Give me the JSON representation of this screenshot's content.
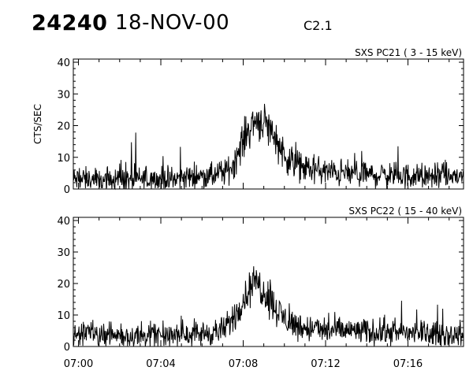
{
  "header": {
    "event_number": "24240",
    "date": "18-NOV-00",
    "flare_class": "C2.1"
  },
  "chart_data": [
    {
      "type": "line",
      "title": "SXS PC21  (  3 - 15 keV)",
      "ylabel": "CTS/SEC",
      "xlabel": "",
      "x_ticks": [
        "07:00",
        "07:04",
        "07:08",
        "07:12",
        "07:16"
      ],
      "x_tick_minutes": [
        0,
        4,
        8,
        12,
        16
      ],
      "xlim_minutes": [
        -0.25,
        18.7
      ],
      "ylim": [
        0,
        41
      ],
      "y_ticks": [
        0,
        10,
        20,
        30,
        40
      ],
      "grid": false,
      "series": [
        {
          "x_minutes": [
            -0.25,
            0.5,
            1.0,
            1.5,
            2.0,
            2.5,
            3.0,
            3.5,
            4.0,
            4.5,
            5.0,
            5.5,
            6.0,
            6.5,
            7.0,
            7.3,
            7.6,
            7.9,
            8.2,
            8.5,
            8.7,
            9.0,
            9.3,
            9.6,
            9.9,
            10.2,
            10.5,
            11.0,
            11.5,
            12.0,
            12.5,
            13.0,
            13.5,
            14.0,
            15.0,
            16.0,
            17.0,
            18.0,
            18.7
          ],
          "values": [
            3,
            3,
            3,
            3.5,
            3,
            3,
            3,
            3,
            3,
            3,
            3.5,
            4,
            4,
            4,
            5,
            6,
            9,
            14,
            18,
            21,
            22,
            21,
            19,
            16,
            12,
            9,
            8,
            6.5,
            6,
            5.5,
            5,
            5,
            4.5,
            4.5,
            4.5,
            4,
            4,
            4,
            4
          ]
        }
      ]
    },
    {
      "type": "line",
      "title": "SXS PC22  ( 15 - 40 keV)",
      "ylabel": "",
      "xlabel": "",
      "x_ticks": [
        "07:00",
        "07:04",
        "07:08",
        "07:12",
        "07:16"
      ],
      "x_tick_minutes": [
        0,
        4,
        8,
        12,
        16
      ],
      "xlim_minutes": [
        -0.25,
        18.7
      ],
      "ylim": [
        0,
        41
      ],
      "y_ticks": [
        0,
        10,
        20,
        30,
        40
      ],
      "grid": false,
      "series": [
        {
          "x_minutes": [
            -0.25,
            0.5,
            1.0,
            1.5,
            2.0,
            2.5,
            3.0,
            3.5,
            4.0,
            4.5,
            5.0,
            5.5,
            6.0,
            6.5,
            7.0,
            7.3,
            7.6,
            7.9,
            8.2,
            8.5,
            8.7,
            9.0,
            9.3,
            9.6,
            9.9,
            10.2,
            10.5,
            11.0,
            11.5,
            12.0,
            12.5,
            13.0,
            13.5,
            14.0,
            15.0,
            16.0,
            17.0,
            18.0,
            18.7
          ],
          "values": [
            4,
            4,
            3.5,
            3.5,
            3.5,
            3.5,
            3.5,
            3.5,
            3.5,
            3.5,
            4,
            4,
            4,
            4.5,
            5,
            7,
            10,
            14,
            17,
            19.5,
            20,
            18,
            15,
            12,
            9.5,
            8,
            7,
            6,
            5.5,
            5,
            5,
            5,
            5,
            4.5,
            4.5,
            4.5,
            4,
            4,
            3.5
          ]
        }
      ]
    }
  ]
}
